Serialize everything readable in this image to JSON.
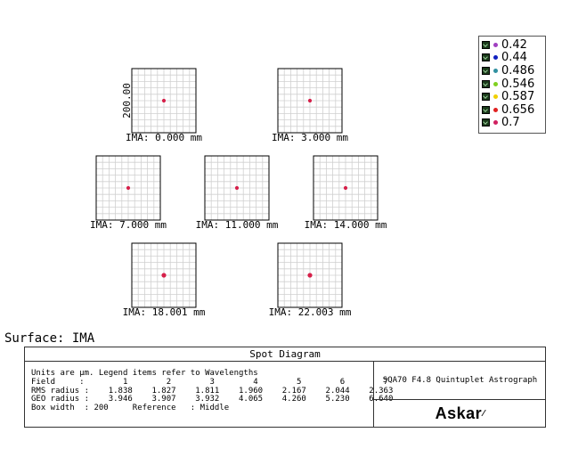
{
  "legend": {
    "items": [
      {
        "label": "0.42",
        "color": "#a040c0"
      },
      {
        "label": "0.44",
        "color": "#1020c0"
      },
      {
        "label": "0.486",
        "color": "#3090a0"
      },
      {
        "label": "0.546",
        "color": "#80d020"
      },
      {
        "label": "0.587",
        "color": "#f0d000"
      },
      {
        "label": "0.656",
        "color": "#e02020"
      },
      {
        "label": "0.7",
        "color": "#d02060"
      }
    ]
  },
  "plots": [
    {
      "label": "IMA: 0.000 mm",
      "axis_label": "200.00"
    },
    {
      "label": "IMA: 3.000 mm"
    },
    {
      "label": "IMA: 7.000 mm"
    },
    {
      "label": "IMA: 11.000 mm"
    },
    {
      "label": "IMA: 14.000 mm"
    },
    {
      "label": "IMA: 18.001 mm"
    },
    {
      "label": "IMA: 22.003 mm"
    }
  ],
  "surface_title": "Surface: IMA",
  "info": {
    "header": "Spot Diagram",
    "line1": "Units are µm. Legend items refer to Wavelengths",
    "line2": "Field     :        1        2        3        4        5        6        7",
    "line3": "RMS radius :    1.838    1.827    1.811    1.960    2.167    2.044    2.363",
    "line4": "GEO radius :    3.946    3.907    3.932    4.065    4.260    5.230    6.640",
    "line5": "Box width  : 200     Reference   : Middle",
    "system": "SQA70 F4.8 Quintuplet Astrograph",
    "brand": "Askar"
  }
}
